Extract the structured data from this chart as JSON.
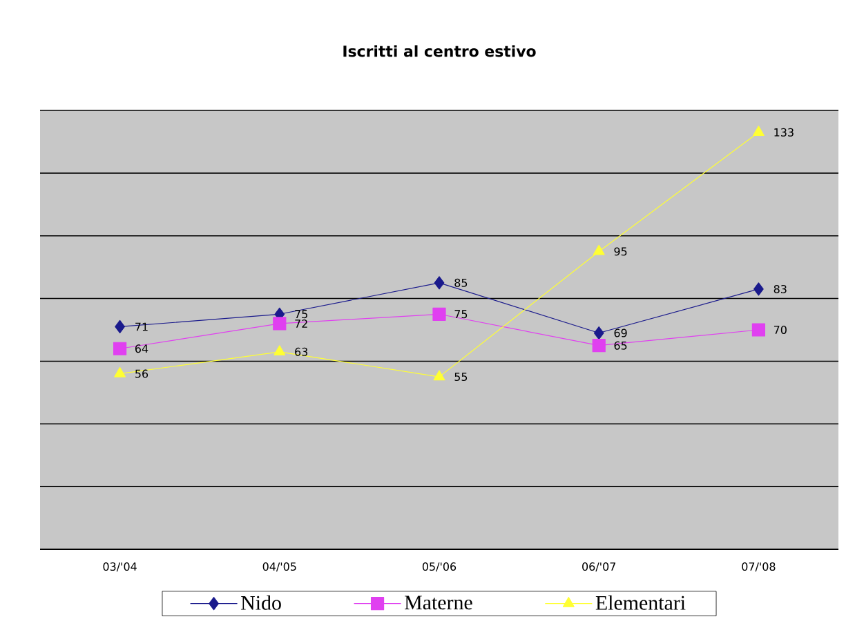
{
  "chart_data": {
    "type": "line",
    "title": "Iscritti al centro estivo",
    "categories": [
      "03/'04",
      "04/'05",
      "05/'06",
      "06/'07",
      "07/'08"
    ],
    "series": [
      {
        "name": "Nido",
        "color": "#1a1a8c",
        "marker": "diamond",
        "values": [
          71,
          75,
          85,
          69,
          83
        ]
      },
      {
        "name": "Materne",
        "color": "#e040f0",
        "marker": "square",
        "values": [
          64,
          72,
          75,
          65,
          70
        ]
      },
      {
        "name": "Elementari",
        "color": "#ffff33",
        "marker": "triangle",
        "values": [
          56,
          63,
          55,
          95,
          133
        ]
      }
    ],
    "ylim": [
      0,
      140
    ],
    "yticks": [
      {
        "value": 0,
        "label": null
      },
      {
        "value": 20,
        "label": null
      },
      {
        "value": 40,
        "label": null
      },
      {
        "value": 60,
        "label": null
      },
      {
        "value": 80,
        "label": null
      },
      {
        "value": 100,
        "label": null
      },
      {
        "value": 120,
        "label": null
      },
      {
        "value": 140,
        "label": null
      }
    ],
    "grid": "y",
    "legend": "bottom",
    "data_labels": true,
    "tick_labels": "x"
  }
}
